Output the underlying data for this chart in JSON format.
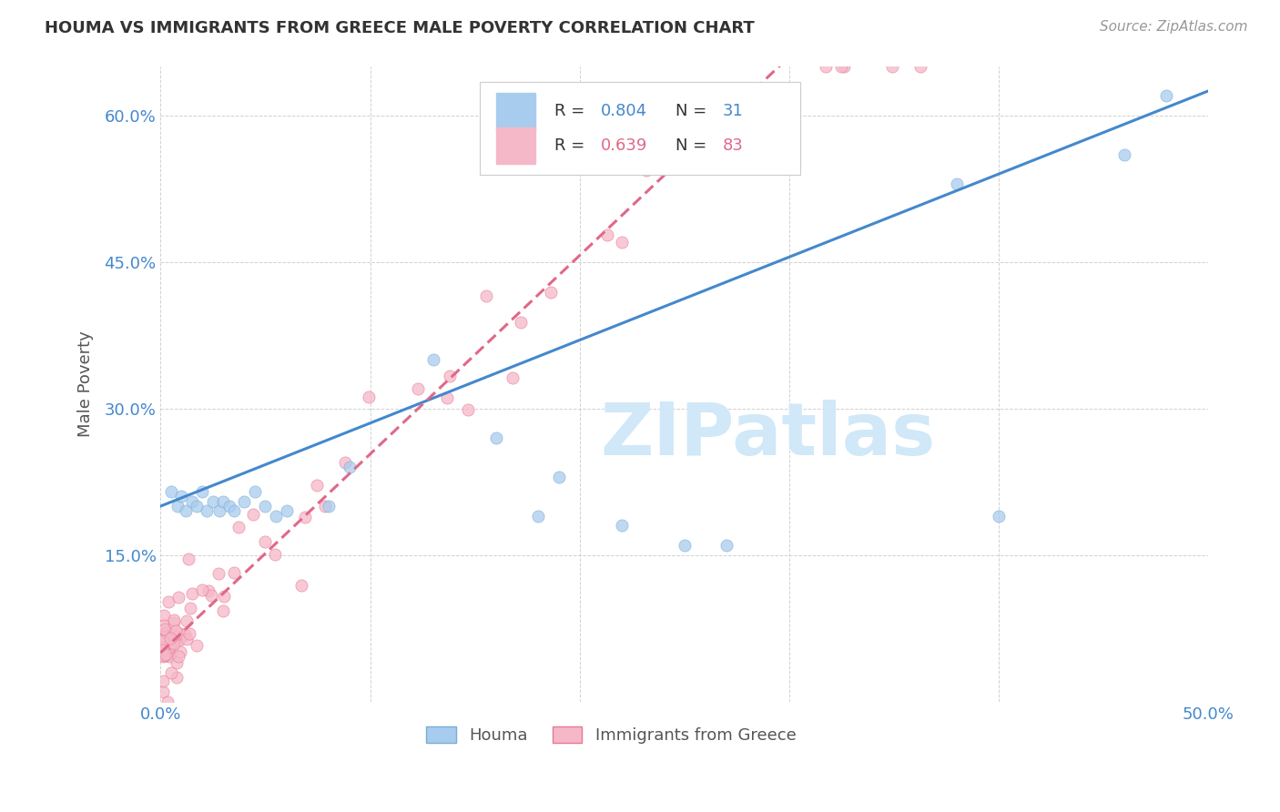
{
  "title": "HOUMA VS IMMIGRANTS FROM GREECE MALE POVERTY CORRELATION CHART",
  "source": "Source: ZipAtlas.com",
  "ylabel": "Male Poverty",
  "xlim": [
    0.0,
    0.5
  ],
  "ylim": [
    0.0,
    0.65
  ],
  "xtick_positions": [
    0.0,
    0.1,
    0.2,
    0.3,
    0.4,
    0.5
  ],
  "xtick_labels": [
    "0.0%",
    "",
    "",
    "",
    "",
    "50.0%"
  ],
  "ytick_positions": [
    0.0,
    0.15,
    0.3,
    0.45,
    0.6
  ],
  "ytick_labels": [
    "",
    "15.0%",
    "30.0%",
    "45.0%",
    "60.0%"
  ],
  "houma_color": "#a8ccee",
  "greece_color": "#f5b8c8",
  "houma_edge_color": "#7aadd4",
  "greece_edge_color": "#e87898",
  "houma_line_color": "#4488cc",
  "greece_line_color": "#e06888",
  "watermark_color": "#d0e8f8",
  "R_houma": 0.804,
  "N_houma": 31,
  "R_greece": 0.639,
  "N_greece": 83,
  "blue_line_x0": 0.0,
  "blue_line_y0": 0.2,
  "blue_line_x1": 0.5,
  "blue_line_y1": 0.625,
  "pink_line_x0": 0.0,
  "pink_line_y0": 0.05,
  "pink_line_x1": 0.3,
  "pink_line_y1": 0.66
}
